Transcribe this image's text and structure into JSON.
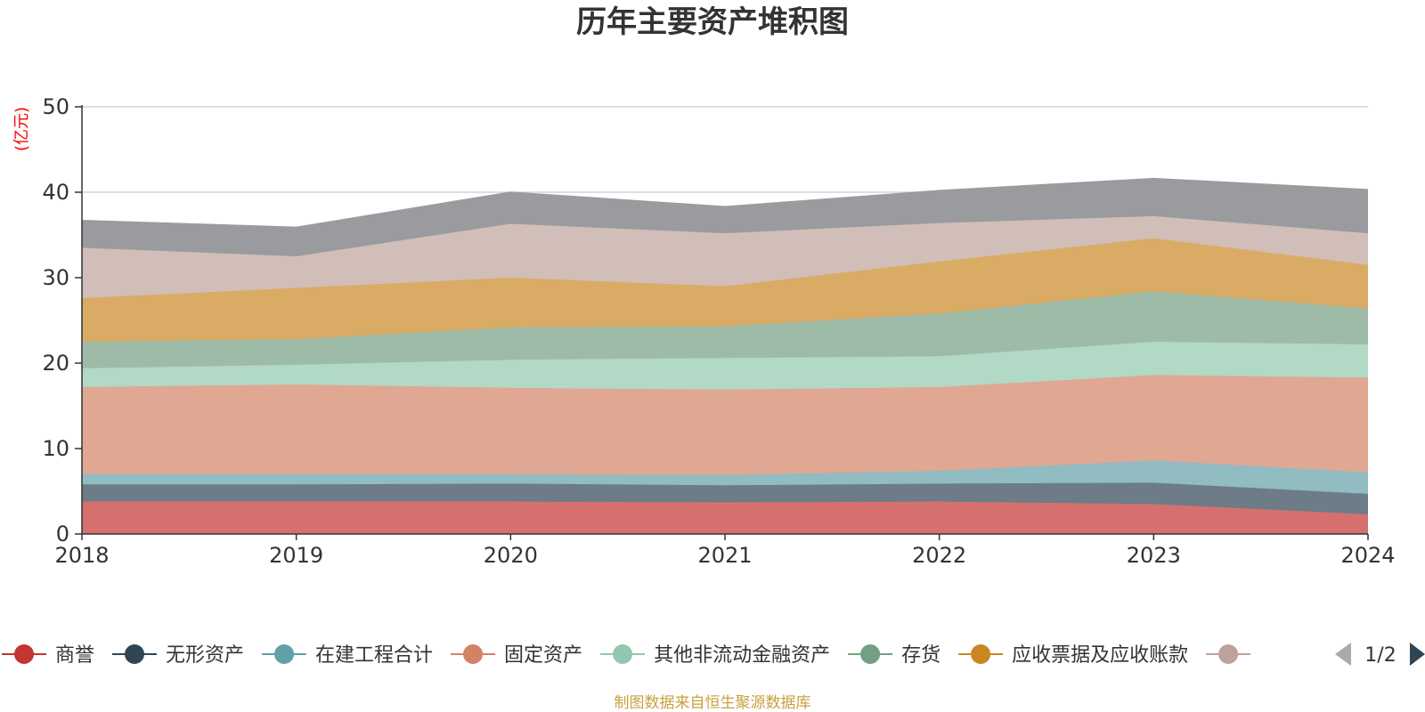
{
  "chart_data": {
    "type": "area",
    "stacked": true,
    "title": "历年主要资产堆积图",
    "y_unit": "(亿元)",
    "x": [
      "2018",
      "2019",
      "2020",
      "2021",
      "2022",
      "2023",
      "2024"
    ],
    "ylim": [
      0,
      50
    ],
    "yticks": [
      "0",
      "10",
      "20",
      "30",
      "40",
      "50"
    ],
    "grid": true,
    "legend_position": "bottom",
    "series": [
      {
        "name": "商誉",
        "color": "#c23531",
        "area_color": "#d6706e",
        "values": [
          3.8,
          3.8,
          3.8,
          3.7,
          3.8,
          3.5,
          2.3
        ]
      },
      {
        "name": "无形资产",
        "color": "#2f4554",
        "area_color": "#6d7c87",
        "values": [
          2.0,
          2.0,
          2.1,
          2.0,
          2.1,
          2.5,
          2.4
        ]
      },
      {
        "name": "在建工程合计",
        "color": "#61a0a8",
        "area_color": "#90bcc2",
        "values": [
          1.2,
          1.2,
          1.1,
          1.2,
          1.5,
          2.6,
          2.5
        ]
      },
      {
        "name": "固定资产",
        "color": "#d48265",
        "area_color": "#e0a793",
        "values": [
          10.2,
          10.5,
          10.1,
          10.0,
          9.8,
          10.0,
          11.1
        ]
      },
      {
        "name": "其他非流动金融资产",
        "color": "#91c7ae",
        "area_color": "#b2d8c6",
        "values": [
          2.2,
          2.3,
          3.3,
          3.7,
          3.6,
          3.9,
          3.9
        ]
      },
      {
        "name": "存货",
        "color": "#749f83",
        "area_color": "#9ebba8",
        "values": [
          3.1,
          3.0,
          3.8,
          3.7,
          5.0,
          5.9,
          4.2
        ]
      },
      {
        "name": "应收票据及应收账款",
        "color": "#ca8622",
        "area_color": "#daab64",
        "values": [
          5.1,
          6.0,
          5.8,
          4.7,
          6.1,
          6.2,
          5.1
        ]
      },
      {
        "name": "",
        "color": "#bda29a",
        "area_color": "#d1beb8",
        "values": [
          5.9,
          3.7,
          6.3,
          6.2,
          4.5,
          2.6,
          3.7
        ]
      },
      {
        "name": "",
        "color": "#6e7074",
        "area_color": "#9a9b9e",
        "values": [
          3.2,
          3.4,
          3.7,
          3.1,
          3.8,
          4.4,
          5.1
        ]
      }
    ],
    "legend_page": "1/2",
    "source": "制图数据来自恒生聚源数据库"
  }
}
